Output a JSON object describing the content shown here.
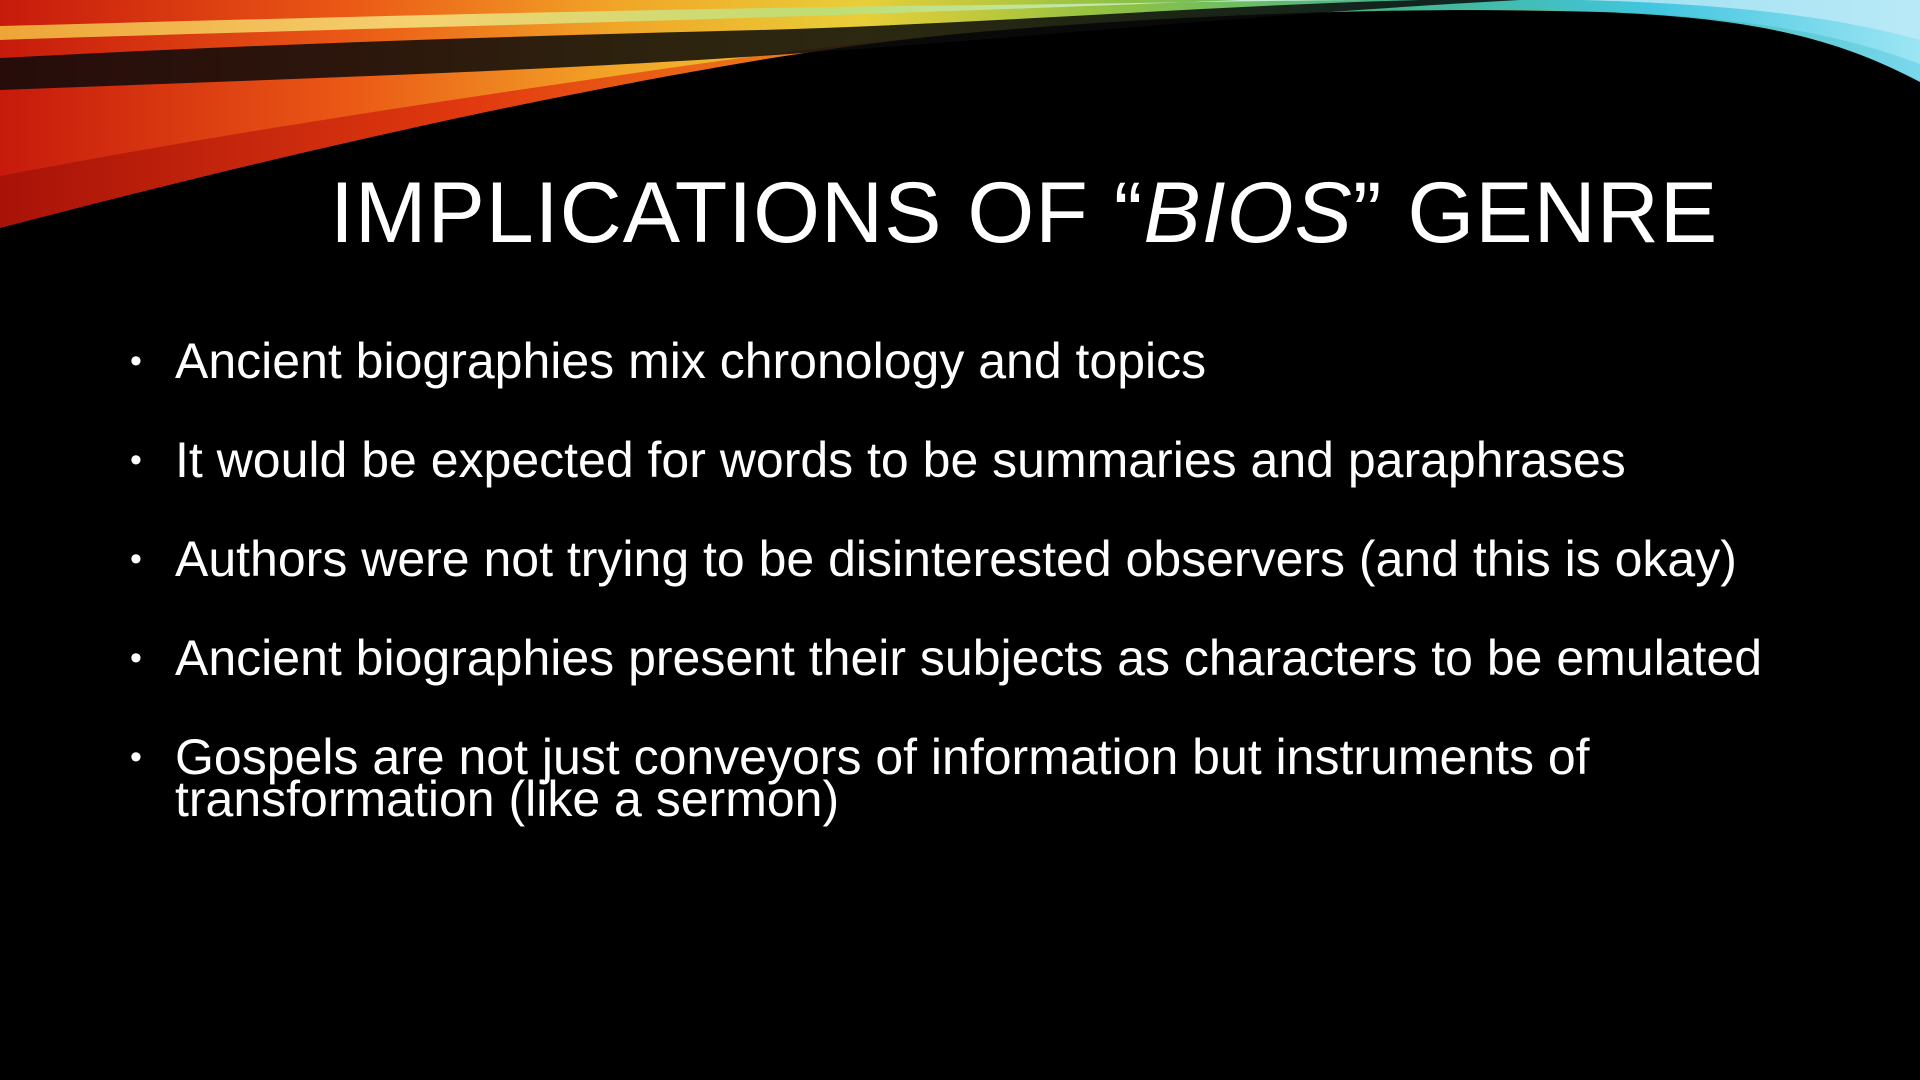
{
  "slide": {
    "title": {
      "before": "IMPLICATIONS OF “",
      "italic": "BIOS",
      "after": "” GENRE"
    },
    "bullets": [
      "Ancient biographies mix chronology and topics",
      "It would be expected for words to be summaries and paraphrases",
      "Authors were not trying to be disinterested observers (and this is okay)",
      "Ancient biographies present their subjects as characters to be emulated",
      "Gospels are not just conveyors of information but instruments of transformation (like a sermon)"
    ]
  },
  "colors": {
    "background": "#000000",
    "text": "#ffffff",
    "ribbon_red": "#e02010",
    "ribbon_orange": "#f08a1c",
    "ribbon_yellow": "#f2d23a",
    "ribbon_green": "#58b848",
    "ribbon_cyan": "#48c8e0"
  }
}
